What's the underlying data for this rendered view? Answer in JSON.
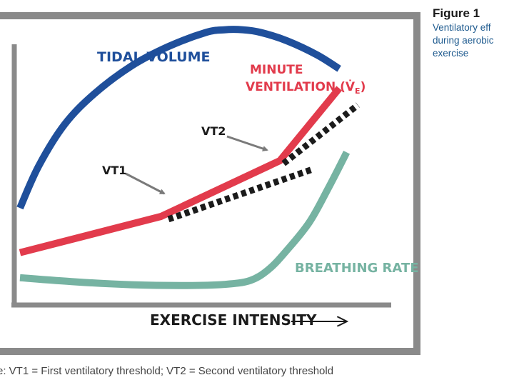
{
  "figure": {
    "label": "Figure 1",
    "caption_lines": [
      "Ventilatory eff",
      "during aerobic",
      "exercise"
    ]
  },
  "footnote": "e: VT1 = First ventilatory threshold; VT2 = Second ventilatory threshold",
  "colors": {
    "frame": "#8a8a8a",
    "axis": "#8a8a8a",
    "tidal_volume": "#1f4f9b",
    "minute_ventilation": "#e23b4c",
    "breathing_rate": "#76b3a2",
    "threshold_markers": "#1b1b1b",
    "arrow": "#7a7a7a"
  },
  "chart_data": {
    "type": "line",
    "title": "",
    "xlabel": "EXERCISE INTENSITY",
    "ylabel": "",
    "xlim": [
      0,
      100
    ],
    "ylim": [
      0,
      100
    ],
    "grid": false,
    "legend": "none",
    "series": [
      {
        "name": "TIDAL VOLUME",
        "color": "#1f4f9b",
        "x": [
          0,
          5,
          12,
          20,
          30,
          40,
          50,
          55,
          60,
          65,
          72,
          80,
          86
        ],
        "y": [
          33,
          48,
          63,
          74,
          84,
          91,
          96,
          97,
          97,
          96,
          93,
          88,
          83
        ]
      },
      {
        "name": "MINUTE VENTILATION (V̇E)",
        "color": "#e23b4c",
        "x": [
          0,
          38,
          70,
          86
        ],
        "y": [
          17,
          30,
          50,
          76
        ]
      },
      {
        "name": "BREATHING RATE",
        "color": "#76b3a2",
        "x": [
          0,
          15,
          30,
          45,
          55,
          62,
          67,
          72,
          78,
          83,
          88
        ],
        "y": [
          8,
          6.5,
          5.5,
          5.2,
          5.6,
          7,
          11,
          18,
          28,
          40,
          53
        ]
      }
    ],
    "threshold_extensions": [
      {
        "x": [
          40,
          79
        ],
        "y": [
          29,
          47
        ]
      },
      {
        "x": [
          71,
          91
        ],
        "y": [
          49,
          70
        ]
      }
    ],
    "annotations": [
      {
        "text": "VT1",
        "points_to": {
          "x": 38,
          "y": 30
        }
      },
      {
        "text": "VT2",
        "points_to": {
          "x": 70,
          "y": 50
        }
      }
    ]
  }
}
